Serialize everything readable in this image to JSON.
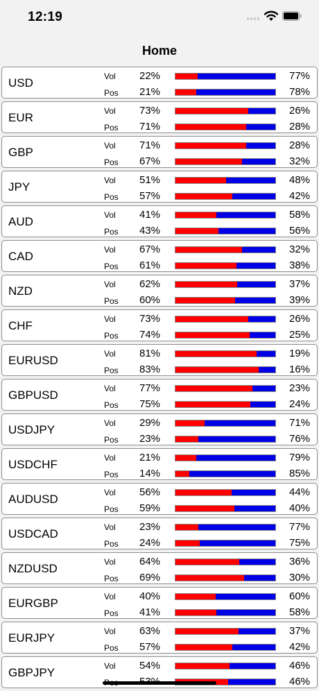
{
  "status_bar": {
    "time": "12:19",
    "signal_icon": "cellular-signal-icon",
    "wifi_icon": "wifi-icon",
    "battery_icon": "battery-icon"
  },
  "nav": {
    "title": "Home"
  },
  "colors": {
    "vol_pos_left": "#ff0000",
    "vol_pos_right": "#0000e6",
    "row_border": "#8e8e8e"
  },
  "labels": {
    "vol": "Vol",
    "pos": "Pos"
  },
  "rows": [
    {
      "symbol": "USD",
      "vol_left": "22%",
      "vol_right": "77%",
      "pos_left": "21%",
      "pos_right": "78%",
      "vol_frac": 0.22,
      "pos_frac": 0.21
    },
    {
      "symbol": "EUR",
      "vol_left": "73%",
      "vol_right": "26%",
      "pos_left": "71%",
      "pos_right": "28%",
      "vol_frac": 0.73,
      "pos_frac": 0.71
    },
    {
      "symbol": "GBP",
      "vol_left": "71%",
      "vol_right": "28%",
      "pos_left": "67%",
      "pos_right": "32%",
      "vol_frac": 0.71,
      "pos_frac": 0.67
    },
    {
      "symbol": "JPY",
      "vol_left": "51%",
      "vol_right": "48%",
      "pos_left": "57%",
      "pos_right": "42%",
      "vol_frac": 0.51,
      "pos_frac": 0.57
    },
    {
      "symbol": "AUD",
      "vol_left": "41%",
      "vol_right": "58%",
      "pos_left": "43%",
      "pos_right": "56%",
      "vol_frac": 0.41,
      "pos_frac": 0.43
    },
    {
      "symbol": "CAD",
      "vol_left": "67%",
      "vol_right": "32%",
      "pos_left": "61%",
      "pos_right": "38%",
      "vol_frac": 0.67,
      "pos_frac": 0.61
    },
    {
      "symbol": "NZD",
      "vol_left": "62%",
      "vol_right": "37%",
      "pos_left": "60%",
      "pos_right": "39%",
      "vol_frac": 0.62,
      "pos_frac": 0.6
    },
    {
      "symbol": "CHF",
      "vol_left": "73%",
      "vol_right": "26%",
      "pos_left": "74%",
      "pos_right": "25%",
      "vol_frac": 0.73,
      "pos_frac": 0.74
    },
    {
      "symbol": "EURUSD",
      "vol_left": "81%",
      "vol_right": "19%",
      "pos_left": "83%",
      "pos_right": "16%",
      "vol_frac": 0.81,
      "pos_frac": 0.83
    },
    {
      "symbol": "GBPUSD",
      "vol_left": "77%",
      "vol_right": "23%",
      "pos_left": "75%",
      "pos_right": "24%",
      "vol_frac": 0.77,
      "pos_frac": 0.75
    },
    {
      "symbol": "USDJPY",
      "vol_left": "29%",
      "vol_right": "71%",
      "pos_left": "23%",
      "pos_right": "76%",
      "vol_frac": 0.29,
      "pos_frac": 0.23
    },
    {
      "symbol": "USDCHF",
      "vol_left": "21%",
      "vol_right": "79%",
      "pos_left": "14%",
      "pos_right": "85%",
      "vol_frac": 0.21,
      "pos_frac": 0.14
    },
    {
      "symbol": "AUDUSD",
      "vol_left": "56%",
      "vol_right": "44%",
      "pos_left": "59%",
      "pos_right": "40%",
      "vol_frac": 0.56,
      "pos_frac": 0.59
    },
    {
      "symbol": "USDCAD",
      "vol_left": "23%",
      "vol_right": "77%",
      "pos_left": "24%",
      "pos_right": "75%",
      "vol_frac": 0.23,
      "pos_frac": 0.24
    },
    {
      "symbol": "NZDUSD",
      "vol_left": "64%",
      "vol_right": "36%",
      "pos_left": "69%",
      "pos_right": "30%",
      "vol_frac": 0.64,
      "pos_frac": 0.69
    },
    {
      "symbol": "EURGBP",
      "vol_left": "40%",
      "vol_right": "60%",
      "pos_left": "41%",
      "pos_right": "58%",
      "vol_frac": 0.4,
      "pos_frac": 0.41
    },
    {
      "symbol": "EURJPY",
      "vol_left": "63%",
      "vol_right": "37%",
      "pos_left": "57%",
      "pos_right": "42%",
      "vol_frac": 0.63,
      "pos_frac": 0.57
    },
    {
      "symbol": "GBPJPY",
      "vol_left": "54%",
      "vol_right": "46%",
      "pos_left": "53%",
      "pos_right": "46%",
      "vol_frac": 0.54,
      "pos_frac": 0.53
    }
  ]
}
